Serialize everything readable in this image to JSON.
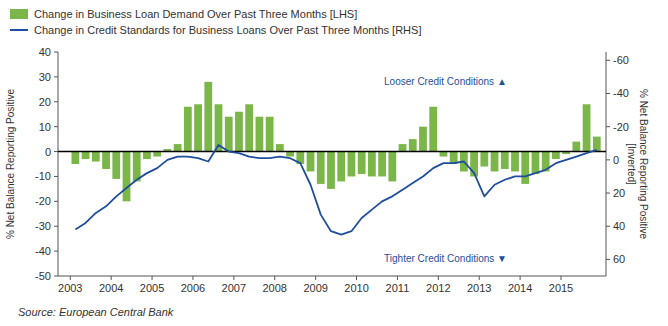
{
  "chart_data": {
    "type": "bar",
    "ylabel": "% Net Balance Reporting Positive",
    "y2label": "% Net Balance Reporting Positive\n[Inverted]",
    "x": [
      2003.125,
      2003.375,
      2003.625,
      2003.875,
      2004.125,
      2004.375,
      2004.625,
      2004.875,
      2005.125,
      2005.375,
      2005.625,
      2005.875,
      2006.125,
      2006.375,
      2006.625,
      2006.875,
      2007.125,
      2007.375,
      2007.625,
      2007.875,
      2008.125,
      2008.375,
      2008.625,
      2008.875,
      2009.125,
      2009.375,
      2009.625,
      2009.875,
      2010.125,
      2010.375,
      2010.625,
      2010.875,
      2011.125,
      2011.375,
      2011.625,
      2011.875,
      2012.125,
      2012.375,
      2012.625,
      2012.875,
      2013.125,
      2013.375,
      2013.625,
      2013.875,
      2014.125,
      2014.375,
      2014.625,
      2014.875,
      2015.125,
      2015.375,
      2015.625,
      2015.875
    ],
    "xlim": [
      2002.7,
      2016.1
    ],
    "xticks": [
      2003,
      2004,
      2005,
      2006,
      2007,
      2008,
      2009,
      2010,
      2011,
      2012,
      2013,
      2014,
      2015
    ],
    "ylim": [
      -50,
      40
    ],
    "yticks": [
      -50,
      -40,
      -30,
      -20,
      -10,
      0,
      10,
      20,
      30,
      40
    ],
    "y2lim": [
      70,
      -65
    ],
    "y2ticks": [
      -60,
      -40,
      -20,
      0,
      20,
      40,
      60
    ],
    "grid": false,
    "legend": "upper left",
    "series": [
      {
        "name": "Change in Business Loan Demand Over Past Three Months [LHS]",
        "type": "bar",
        "color": "#7ab648",
        "values": [
          -5,
          -3,
          -4,
          -7,
          -11,
          -20,
          -12,
          -3,
          -2,
          1,
          3,
          18,
          19,
          28,
          19,
          14,
          16,
          19,
          14,
          14,
          3,
          -2,
          -5,
          -8,
          -13,
          -15,
          -12,
          -10,
          -9,
          -10,
          -10,
          -12,
          3,
          5,
          10,
          18,
          -2,
          -5,
          -8,
          -10,
          -6,
          -8,
          -7,
          -8,
          -13,
          -9,
          -8,
          -3,
          -1,
          4,
          19,
          6
        ]
      },
      {
        "name": "Change in Credit Standards for Business Loans Over Past Three Months [RHS]",
        "type": "line",
        "color": "#1f4e9c",
        "axis": "y2",
        "values": [
          42,
          38,
          32,
          28,
          22,
          17,
          12,
          8,
          5,
          0,
          -2,
          -2,
          -1,
          1,
          -9,
          -5,
          -4,
          -2,
          -1,
          -1,
          -2,
          -1,
          2,
          15,
          33,
          43,
          45,
          43,
          35,
          30,
          25,
          22,
          18,
          14,
          10,
          5,
          2,
          2,
          1,
          8,
          22,
          15,
          12,
          10,
          10,
          8,
          6,
          2,
          0,
          -2,
          -4,
          -6
        ]
      }
    ],
    "annotations": [
      "Looser Credit Conditions  ▲",
      "Tighter Credit Conditions  ▼"
    ],
    "source": "Source: European Central Bank"
  }
}
